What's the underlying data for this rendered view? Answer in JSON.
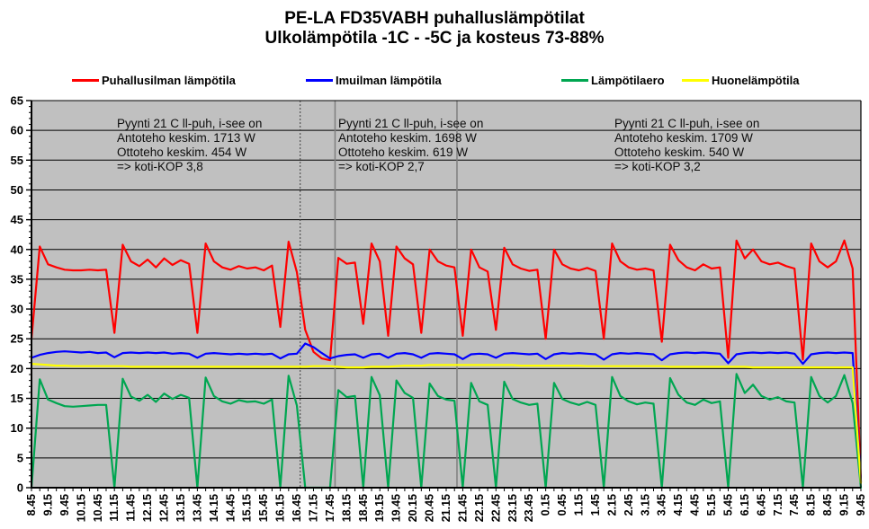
{
  "title": {
    "line1": "PE-LA FD35VABH puhalluslämpötilat",
    "line2": "Ulkolämpötila -1C - -5C ja kosteus 73-88%"
  },
  "legend": [
    {
      "label": "Puhallusilman lämpötila",
      "color": "#FF0000"
    },
    {
      "label": "Imuilman lämpötila",
      "color": "#0000FF"
    },
    {
      "label": "Lämpötilaero",
      "color": "#00A651"
    },
    {
      "label": "Huonelämpötila",
      "color": "#FFFF00"
    }
  ],
  "annotations": [
    {
      "lines": [
        "Pyynti 21 C ll-puh,  i-see on",
        "Antoteho  keskim. 1713 W",
        "Ottoteho keskim. 454 W",
        "=> koti-KOP 3,8"
      ]
    },
    {
      "lines": [
        "Pyynti 21 C ll-puh,  i-see on",
        "Antoteho  keskim. 1698 W",
        "Ottoteho keskim. 619 W",
        "=> koti-KOP 2,7"
      ]
    },
    {
      "lines": [
        "Pyynti 21 C ll-puh,  i-see on",
        "Antoteho  keskim. 1709 W",
        "Ottoteho keskim. 540 W",
        "=> koti-KOP 3,2"
      ]
    }
  ],
  "chart_data": {
    "type": "line",
    "title": "PE-LA FD35VABH puhalluslämpötilat — Ulkolämpötila -1C - -5C ja kosteus 73-88%",
    "xlabel": "",
    "ylabel": "",
    "ylim": [
      0,
      65
    ],
    "ytick_step": 5,
    "y_tick_labels": [
      0,
      5,
      10,
      15,
      20,
      25,
      30,
      35,
      40,
      45,
      50,
      55,
      60,
      65
    ],
    "grid": true,
    "plot_bg": "#C0C0C0",
    "grid_color": "#000000",
    "legend_position": "top",
    "x_minutes_per_point": 15,
    "x_tick_labels": [
      "8.45",
      "9.15",
      "9.45",
      "10.15",
      "10.45",
      "11.15",
      "11.45",
      "12.15",
      "12.45",
      "13.15",
      "13.45",
      "14.15",
      "14.45",
      "15.15",
      "15.45",
      "16.15",
      "16.45",
      "17.15",
      "17.45",
      "18.15",
      "18.45",
      "19.15",
      "19.45",
      "20.15",
      "20.45",
      "21.15",
      "21.45",
      "22.15",
      "22.45",
      "23.15",
      "23.45",
      "0.15",
      "0.45",
      "1.15",
      "1.45",
      "2.15",
      "2.45",
      "3.15",
      "3.45",
      "4.15",
      "4.45",
      "5.15",
      "5.45",
      "6.15",
      "6.45",
      "7.15",
      "7.45",
      "8.15",
      "8.45",
      "9.15",
      "9.45"
    ],
    "dividers": [
      {
        "style": "dotted",
        "pos": 32.4
      },
      {
        "style": "solid",
        "pos": 36.6
      },
      {
        "style": "solid",
        "pos": 51.3
      }
    ],
    "series": [
      {
        "name": "Puhallusilman lämpötila",
        "color": "#FF0000",
        "width": 2.2,
        "values": [
          25,
          40.5,
          37.5,
          37,
          36.6,
          36.5,
          36.5,
          36.6,
          36.5,
          36.6,
          26,
          40.8,
          38,
          37.2,
          38.3,
          37,
          38.5,
          37.4,
          38.2,
          37.6,
          26,
          41,
          38,
          37,
          36.6,
          37.2,
          36.8,
          37,
          36.5,
          37.3,
          27,
          41.3,
          36.2,
          26.5,
          22.8,
          21.7,
          21.4,
          38.6,
          37.6,
          37.8,
          27.5,
          41,
          38,
          25.5,
          40.5,
          38.5,
          37.5,
          26,
          40,
          38,
          37.3,
          37,
          25.5,
          40,
          37,
          36.3,
          26.5,
          40.3,
          37.5,
          36.8,
          36.4,
          36.6,
          25,
          40,
          37.5,
          36.8,
          36.5,
          36.9,
          36.4,
          25,
          41,
          38,
          37,
          36.6,
          36.8,
          36.5,
          24.5,
          40.8,
          38.2,
          37,
          36.5,
          37.5,
          36.8,
          37,
          21.8,
          41.5,
          38.5,
          40,
          38,
          37.5,
          37.8,
          37.2,
          36.8,
          21.5,
          41,
          38,
          37,
          38,
          41.5,
          36.8,
          1
        ]
      },
      {
        "name": "Imuilman lämpötila",
        "color": "#0000FF",
        "width": 2.2,
        "values": [
          21.8,
          22.3,
          22.6,
          22.8,
          22.9,
          22.8,
          22.7,
          22.8,
          22.6,
          22.7,
          21.9,
          22.6,
          22.7,
          22.6,
          22.7,
          22.6,
          22.7,
          22.5,
          22.6,
          22.5,
          21.8,
          22.5,
          22.6,
          22.5,
          22.4,
          22.5,
          22.4,
          22.5,
          22.4,
          22.5,
          21.7,
          22.4,
          22.5,
          24.2,
          23.6,
          22.6,
          21.7,
          22.1,
          22.3,
          22.4,
          21.8,
          22.4,
          22.5,
          21.8,
          22.5,
          22.6,
          22.4,
          21.8,
          22.5,
          22.6,
          22.5,
          22.4,
          21.6,
          22.4,
          22.5,
          22.4,
          21.8,
          22.5,
          22.6,
          22.5,
          22.4,
          22.5,
          21.6,
          22.4,
          22.6,
          22.5,
          22.6,
          22.5,
          22.4,
          21.5,
          22.4,
          22.6,
          22.5,
          22.6,
          22.5,
          22.4,
          21.4,
          22.4,
          22.6,
          22.7,
          22.6,
          22.7,
          22.6,
          22.5,
          20.9,
          22.4,
          22.6,
          22.7,
          22.6,
          22.7,
          22.6,
          22.7,
          22.5,
          20.8,
          22.4,
          22.6,
          22.7,
          22.6,
          22.7,
          22.6,
          1
        ]
      },
      {
        "name": "Lämpötilaero",
        "color": "#00A651",
        "width": 2.2,
        "values": [
          0,
          18.2,
          14.8,
          14.2,
          13.7,
          13.6,
          13.7,
          13.8,
          13.9,
          13.9,
          0,
          18.3,
          15.3,
          14.6,
          15.6,
          14.4,
          15.8,
          14.9,
          15.6,
          15.1,
          0,
          18.5,
          15.4,
          14.5,
          14.1,
          14.7,
          14.4,
          14.5,
          14.1,
          14.8,
          0,
          18.8,
          13.8,
          0,
          0,
          0,
          0,
          16.4,
          15.2,
          15.4,
          0,
          18.6,
          15.5,
          0,
          18,
          15.9,
          15.1,
          0,
          17.5,
          15.4,
          14.8,
          14.6,
          0,
          17.6,
          14.5,
          13.9,
          0,
          17.8,
          14.9,
          14.3,
          13.9,
          14.1,
          0,
          17.6,
          14.9,
          14.3,
          13.9,
          14.4,
          13.9,
          0,
          18.6,
          15.4,
          14.5,
          14,
          14.3,
          14.1,
          0,
          18.4,
          15.6,
          14.3,
          13.9,
          14.8,
          14.2,
          14.5,
          0,
          19.1,
          15.9,
          17.3,
          15.4,
          14.8,
          15.2,
          14.5,
          14.3,
          0,
          18.6,
          15.4,
          14.3,
          15.4,
          18.9,
          14.2,
          0
        ]
      },
      {
        "name": "Huonelämpötila",
        "color": "#FFFF00",
        "width": 2.2,
        "values": [
          20.8,
          20.7,
          20.6,
          20.5,
          20.5,
          20.4,
          20.4,
          20.4,
          20.4,
          20.4,
          20.4,
          20.4,
          20.3,
          20.3,
          20.3,
          20.3,
          20.3,
          20.3,
          20.3,
          20.3,
          20.3,
          20.3,
          20.3,
          20.3,
          20.3,
          20.3,
          20.3,
          20.3,
          20.3,
          20.3,
          20.3,
          20.3,
          20.3,
          20.3,
          20.4,
          20.4,
          20.4,
          20.3,
          20.2,
          20.2,
          20.2,
          20.3,
          20.3,
          20.3,
          20.4,
          20.5,
          20.5,
          20.5,
          20.6,
          20.6,
          20.6,
          20.6,
          20.6,
          20.6,
          20.6,
          20.6,
          20.6,
          20.6,
          20.6,
          20.5,
          20.5,
          20.5,
          20.5,
          20.5,
          20.5,
          20.5,
          20.5,
          20.4,
          20.4,
          20.4,
          20.4,
          20.4,
          20.4,
          20.4,
          20.4,
          20.4,
          20.4,
          20.3,
          20.3,
          20.3,
          20.3,
          20.3,
          20.3,
          20.3,
          20.3,
          20.3,
          20.3,
          20.2,
          20.2,
          20.2,
          20.2,
          20.2,
          20.2,
          20.2,
          20.2,
          20.2,
          20.2,
          20.2,
          20.2,
          20.2,
          0.8
        ]
      }
    ]
  }
}
